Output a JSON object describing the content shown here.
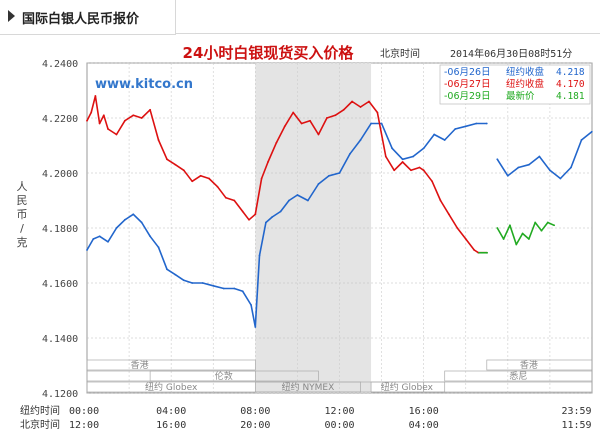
{
  "header": {
    "title": "国际白银人民币报价"
  },
  "chart_data": {
    "type": "line",
    "title": "24小时白银现货买入价格",
    "timezone_label": "北京时间",
    "timestamp": "2014年06月30日08时51分",
    "website": "www.kitco.cn",
    "ylabel": "人民币/克",
    "ylim": [
      4.12,
      4.24
    ],
    "yticks": [
      "4.2400",
      "4.2200",
      "4.2000",
      "4.1800",
      "4.1600",
      "4.1400",
      "4.1200"
    ],
    "xaxis_rows": [
      {
        "label": "纽约时间",
        "ticks": [
          "00:00",
          "04:00",
          "08:00",
          "12:00",
          "16:00",
          "",
          "23:59"
        ]
      },
      {
        "label": "北京时间",
        "ticks": [
          "12:00",
          "16:00",
          "20:00",
          "00:00",
          "04:00",
          "",
          "11:59"
        ]
      }
    ],
    "legend": [
      {
        "date": "06月26日",
        "label": "纽约收盘",
        "value": "4.218",
        "color": "#2266cc"
      },
      {
        "date": "06月27日",
        "label": "纽约收盘",
        "value": "4.170",
        "color": "#dd1111"
      },
      {
        "date": "06月29日",
        "label": "最新价",
        "value": "4.181",
        "color": "#22aa22"
      }
    ],
    "markets": [
      {
        "name": "香港",
        "rows": [
          0
        ],
        "repeat": [
          1,
          2
        ]
      },
      {
        "name": "伦敦",
        "rows": [
          1
        ],
        "repeat": [
          2,
          3
        ]
      },
      {
        "name": "纽约 Globex",
        "rows": [
          2
        ]
      },
      {
        "name": "纽约 NYMEX",
        "rows": [
          2
        ]
      },
      {
        "name": "悉尼",
        "rows": [
          1
        ]
      }
    ],
    "shaded_range_ny": [
      "08:00",
      "13:30"
    ],
    "series": [
      {
        "name": "06月26日",
        "color": "#2266cc",
        "segments": [
          {
            "x": [
              0,
              0.3,
              0.6,
              1.0,
              1.4,
              1.8,
              2.2,
              2.6,
              3.0,
              3.4,
              3.8,
              4.2,
              4.6,
              5.0,
              5.5,
              6.0,
              6.5,
              7.0,
              7.4,
              7.8,
              8.0,
              8.2,
              8.5,
              8.8,
              9.2,
              9.6,
              10.0,
              10.5,
              11.0,
              11.5,
              12.0,
              12.5,
              13.0,
              13.5,
              14.0,
              14.5,
              15.0,
              15.5,
              16.0,
              16.5,
              17.0,
              17.5,
              18.0,
              18.5,
              19.0
            ],
            "y": [
              4.172,
              4.176,
              4.177,
              4.175,
              4.18,
              4.183,
              4.185,
              4.182,
              4.177,
              4.173,
              4.165,
              4.163,
              4.161,
              4.16,
              4.16,
              4.159,
              4.158,
              4.158,
              4.157,
              4.152,
              4.144,
              4.17,
              4.182,
              4.184,
              4.186,
              4.19,
              4.192,
              4.19,
              4.196,
              4.199,
              4.2,
              4.207,
              4.212,
              4.218,
              4.218,
              4.209,
              4.205,
              4.206,
              4.209,
              4.214,
              4.212,
              4.216,
              4.217,
              4.218,
              4.218
            ]
          },
          {
            "x": [
              19.5,
              20.0,
              20.5,
              21.0,
              21.5,
              22.0,
              22.5,
              23.0,
              23.5,
              23.99
            ],
            "y": [
              4.205,
              4.199,
              4.202,
              4.203,
              4.206,
              4.201,
              4.198,
              4.202,
              4.212,
              4.215
            ]
          }
        ]
      },
      {
        "name": "06月27日",
        "color": "#dd1111",
        "segments": [
          {
            "x": [
              0,
              0.2,
              0.4,
              0.6,
              0.8,
              1.0,
              1.4,
              1.8,
              2.2,
              2.6,
              3.0,
              3.4,
              3.8,
              4.2,
              4.6,
              5.0,
              5.4,
              5.8,
              6.2,
              6.6,
              7.0,
              7.4,
              7.7,
              8.0,
              8.3,
              8.6,
              9.0,
              9.4,
              9.8,
              10.2,
              10.6,
              11.0,
              11.4,
              11.8,
              12.2,
              12.6,
              13.0,
              13.4,
              13.8,
              14.2,
              14.6,
              15.0,
              15.4,
              15.8,
              16.0,
              16.4,
              16.8,
              17.2,
              17.6,
              18.0,
              18.4,
              18.6,
              19.0
            ],
            "y": [
              4.219,
              4.222,
              4.228,
              4.218,
              4.221,
              4.216,
              4.214,
              4.219,
              4.221,
              4.22,
              4.223,
              4.212,
              4.205,
              4.203,
              4.201,
              4.197,
              4.199,
              4.198,
              4.195,
              4.191,
              4.19,
              4.186,
              4.183,
              4.185,
              4.198,
              4.204,
              4.211,
              4.217,
              4.222,
              4.218,
              4.219,
              4.214,
              4.22,
              4.221,
              4.223,
              4.226,
              4.224,
              4.226,
              4.222,
              4.206,
              4.201,
              4.204,
              4.201,
              4.202,
              4.201,
              4.197,
              4.19,
              4.185,
              4.18,
              4.176,
              4.172,
              4.171,
              4.171
            ]
          }
        ]
      },
      {
        "name": "06月29日",
        "color": "#22aa22",
        "segments": [
          {
            "x": [
              19.5,
              19.8,
              20.1,
              20.4,
              20.7,
              21.0,
              21.3,
              21.6,
              21.9,
              22.2
            ],
            "y": [
              4.18,
              4.176,
              4.181,
              4.174,
              4.178,
              4.176,
              4.182,
              4.179,
              4.182,
              4.181
            ]
          }
        ]
      }
    ]
  }
}
